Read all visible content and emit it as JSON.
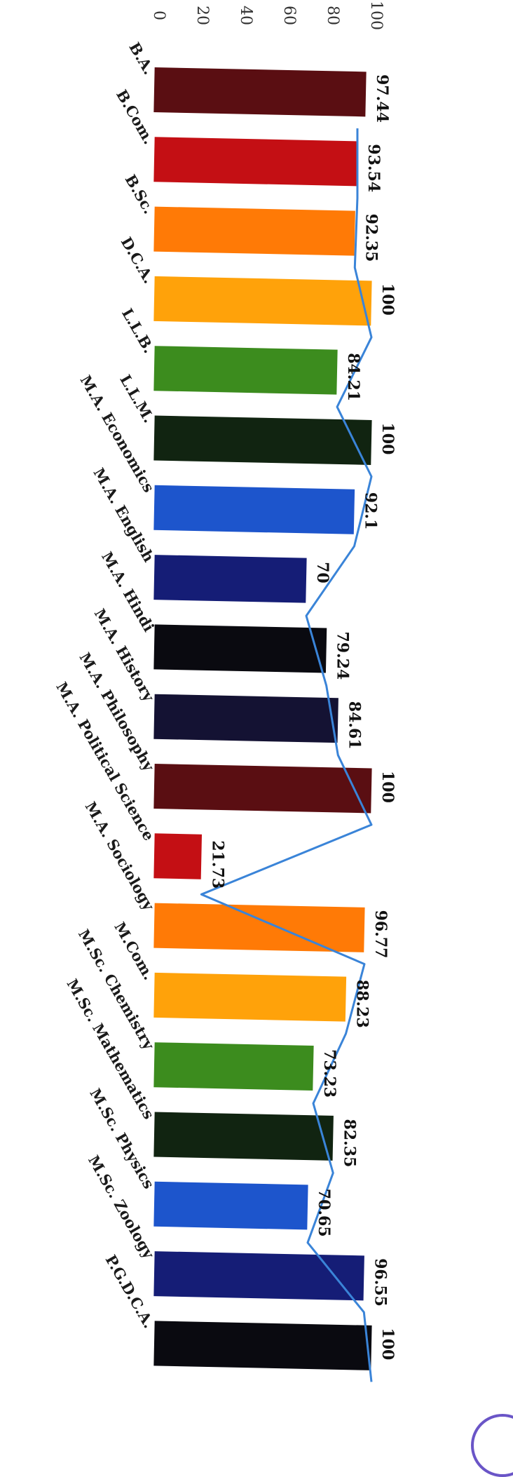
{
  "chart_data": {
    "type": "bar",
    "title": "",
    "xlabel": "",
    "ylabel": "",
    "ylim": [
      0,
      100
    ],
    "yticks": [
      0,
      20,
      40,
      60,
      80,
      100
    ],
    "grid": false,
    "categories": [
      "B.A.",
      "B.Com.",
      "B.Sc.",
      "D.C.A.",
      "L.L.B.",
      "L.L.M.",
      "M.A. Economics",
      "M.A. English",
      "M.A. Hindi",
      "M.A. History",
      "M.A. Philosophy",
      "M.A. Political Science",
      "M.A. Sociology",
      "M.Com.",
      "M.Sc. Chemistry",
      "M.Sc. Mathematics",
      "M.Sc. Physics",
      "M.Sc. Zoology",
      "P.G.D.C.A."
    ],
    "values": [
      97.44,
      93.54,
      92.35,
      100,
      84.21,
      100,
      92.1,
      70,
      79.24,
      84.61,
      100,
      21.73,
      96.77,
      88.23,
      73.23,
      82.35,
      70.65,
      96.55,
      100
    ],
    "value_labels": [
      "97.44",
      "93.54",
      "92.35",
      "100",
      "84.21",
      "100",
      "92.1",
      "70",
      "79.24",
      "84.61",
      "100",
      "21.73",
      "96.77",
      "88.23",
      "73.23",
      "82.35",
      "70.65",
      "96.55",
      "100"
    ],
    "bar_colors": [
      "#5a0e12",
      "#c40f14",
      "#ff7a06",
      "#ffa20a",
      "#3c8c1e",
      "#112411",
      "#1d55cc",
      "#151d76",
      "#0a0a10",
      "#141233",
      "#5a0e12",
      "#c40f14",
      "#ff7a06",
      "#ffa20a",
      "#3c8c1e",
      "#112411",
      "#1d55cc",
      "#151d76",
      "#0a0a10"
    ],
    "line_color": "#3a84d8",
    "line_values": [
      93.54,
      93.54,
      92.35,
      100,
      84.21,
      100,
      92.1,
      70,
      79.24,
      84.61,
      100,
      21.73,
      96.77,
      88.23,
      73.23,
      82.35,
      70.65,
      96.55,
      100
    ]
  }
}
